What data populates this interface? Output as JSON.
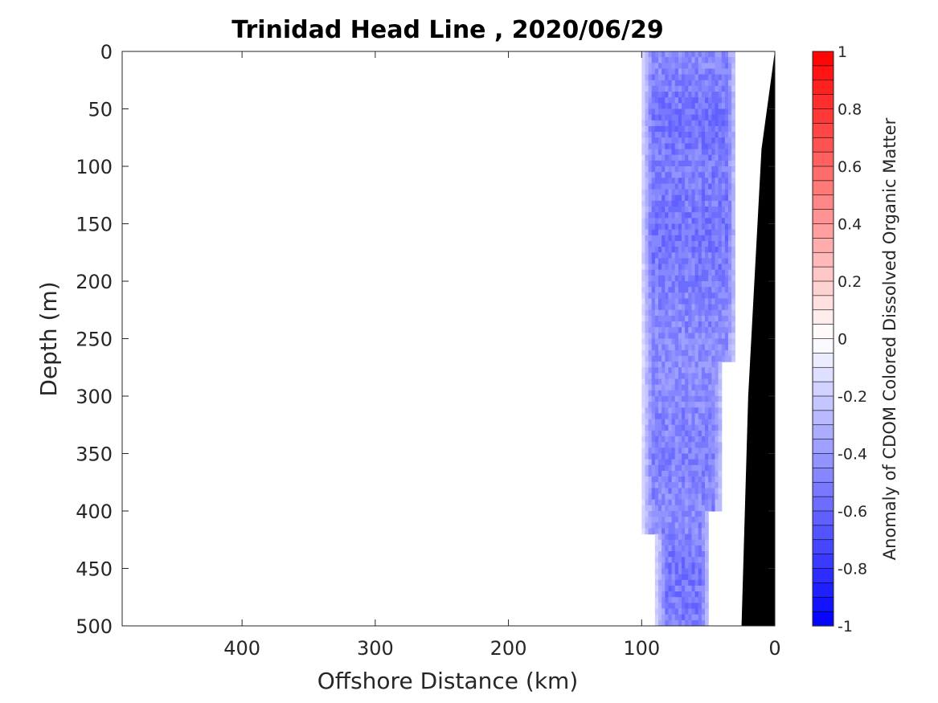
{
  "chart_data": {
    "type": "heatmap",
    "title": "Trinidad Head Line , 2020/06/29",
    "xlabel": "Offshore Distance (km)",
    "ylabel": "Depth (m)",
    "xlim": [
      490,
      0
    ],
    "ylim": [
      0,
      500
    ],
    "x_ticks": [
      "400",
      "300",
      "200",
      "100",
      "0"
    ],
    "y_ticks": [
      "0",
      "50",
      "100",
      "150",
      "200",
      "250",
      "300",
      "350",
      "400",
      "450",
      "500"
    ],
    "colorbar": {
      "label": "Anomaly of CDOM Colored Dissolved Organic Matter",
      "range": [
        -1,
        1
      ],
      "ticks": [
        "1",
        "0.8",
        "0.6",
        "0.4",
        "0.2",
        "0",
        "-0.2",
        "-0.4",
        "-0.6",
        "-0.8",
        "-1"
      ],
      "levels": 40,
      "colormap": "blue-white-red",
      "low_color": "#0000ff",
      "mid_color": "#ffffff",
      "high_color": "#ff0000"
    },
    "anomaly_field": {
      "description_values": "approximate CDOM anomaly by depth, x from 100 to 30 km",
      "depths": [
        0,
        50,
        100,
        150,
        200,
        250,
        300,
        350,
        400,
        450,
        500
      ],
      "typical_values": [
        -0.45,
        -0.55,
        -0.5,
        -0.55,
        -0.5,
        -0.45,
        -0.45,
        -0.5,
        -0.45,
        -0.55,
        -0.5
      ],
      "data_extent_offshore_km": [
        {
          "depth": 0,
          "from": 100,
          "to": 30
        },
        {
          "depth": 265,
          "from": 100,
          "to": 30
        },
        {
          "depth": 270,
          "from": 100,
          "to": 40
        },
        {
          "depth": 400,
          "from": 100,
          "to": 50
        },
        {
          "depth": 420,
          "from": 90,
          "to": 50
        },
        {
          "depth": 500,
          "from": 90,
          "to": 50
        }
      ]
    },
    "bathymetry": [
      {
        "x": 0,
        "depth": 0
      },
      {
        "x": 10,
        "depth": 85
      },
      {
        "x": 20,
        "depth": 300
      },
      {
        "x": 25,
        "depth": 500
      }
    ],
    "bathymetry_color": "#000000"
  }
}
